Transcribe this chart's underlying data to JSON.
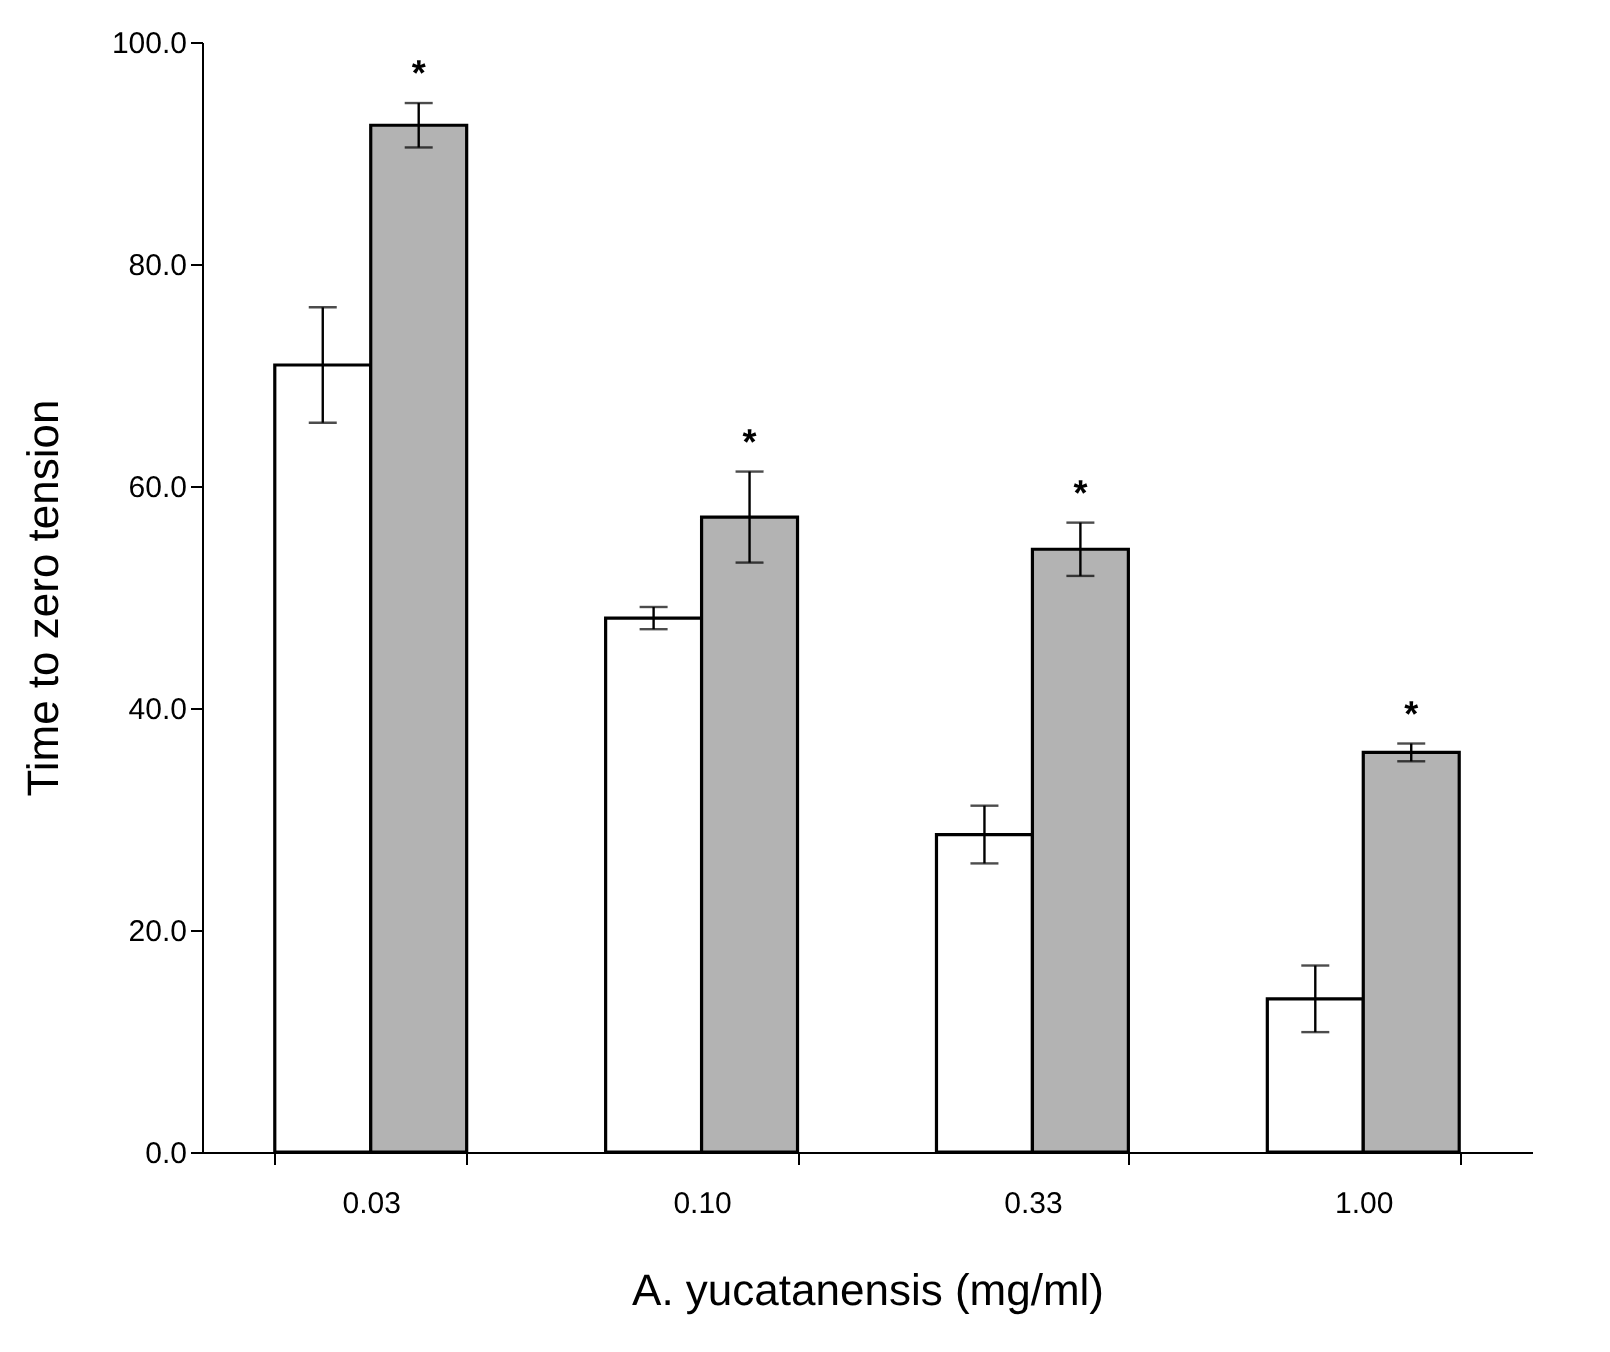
{
  "chart_data": {
    "type": "bar",
    "xlabel": "A. yucatanensis (mg/ml)",
    "ylabel": "Time to zero tension",
    "categories": [
      "0.03",
      "0.10",
      "0.33",
      "1.00"
    ],
    "series": [
      {
        "color": "#ffffff",
        "values": [
          70.9,
          48.1,
          28.6,
          13.8
        ],
        "errors": [
          5.2,
          1.0,
          2.6,
          3.0
        ]
      },
      {
        "color": "#b3b3b3",
        "values": [
          92.5,
          57.2,
          54.3,
          36.0
        ],
        "errors": [
          2.0,
          4.1,
          2.4,
          0.8
        ]
      }
    ],
    "ylim": [
      0,
      100
    ],
    "yticks": [
      {
        "value": 0,
        "label": "0.0"
      },
      {
        "value": 20,
        "label": "20.0"
      },
      {
        "value": 40,
        "label": "40.0"
      },
      {
        "value": 60,
        "label": "60.0"
      },
      {
        "value": 80,
        "label": "80.0"
      },
      {
        "value": 100,
        "label": "100.0"
      }
    ],
    "annotations": [
      {
        "text": "*",
        "x": "0.03",
        "y": 92.5
      },
      {
        "text": "*",
        "x": "0.10",
        "y": 57.2
      },
      {
        "text": "*",
        "x": "0.33",
        "y": 54.3
      },
      {
        "text": "*",
        "x": "1.00",
        "y": 36.0
      }
    ]
  }
}
